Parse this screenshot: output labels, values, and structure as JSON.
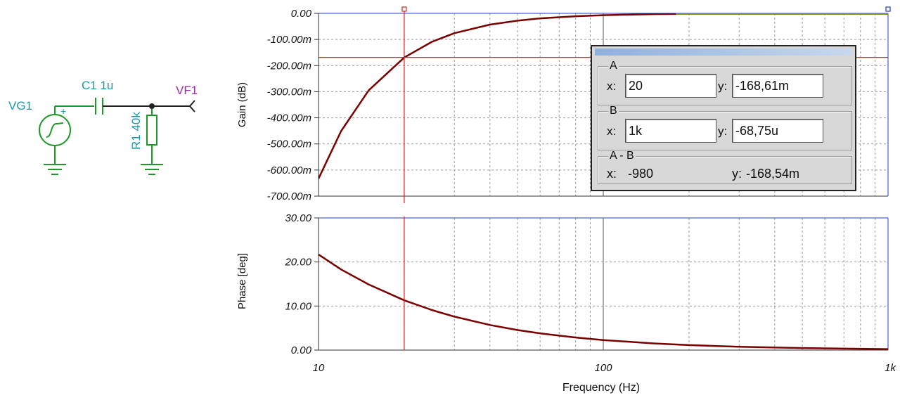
{
  "schematic": {
    "source_label": "VG1",
    "capacitor_label": "C1 1u",
    "resistor_label": "R1 40k",
    "output_label": "VF1",
    "plus_sign": "+"
  },
  "gain_plot": {
    "ylabel": "Gain (dB)",
    "y_ticks": [
      "0.00",
      "-100.00m",
      "-200.00m",
      "-300.00m",
      "-400.00m",
      "-500.00m",
      "-600.00m",
      "-700.00m"
    ]
  },
  "phase_plot": {
    "ylabel": "Phase [deg]",
    "y_ticks": [
      "30.00",
      "20.00",
      "10.00",
      "0.00"
    ]
  },
  "x_axis": {
    "label": "Frequency (Hz)",
    "ticks": [
      "10",
      "100",
      "1k"
    ]
  },
  "cursor_panel": {
    "a": {
      "title": "A",
      "x_prefix": "x:",
      "x_value": "20",
      "y_prefix": "y:",
      "y_value": "-168,61m"
    },
    "b": {
      "title": "B",
      "x_prefix": "x:",
      "x_value": "1k",
      "y_prefix": "y:",
      "y_value": "-68,75u"
    },
    "diff": {
      "title": "A - B",
      "x_prefix": "x:",
      "x_value": "-980",
      "y_prefix": "y:",
      "y_value": "-168,54m"
    }
  },
  "chart_data": [
    {
      "type": "line",
      "xscale": "log",
      "xlim": [
        10,
        1000
      ],
      "ylim": [
        -0.7,
        0
      ],
      "xlabel": "Frequency (Hz)",
      "ylabel": "Gain (dB)",
      "grid": true,
      "series": [
        {
          "x": [
            10,
            12,
            15,
            20,
            25,
            30,
            40,
            50,
            60,
            80,
            100,
            150,
            200,
            300,
            500,
            700,
            1000
          ],
          "y": [
            -0.633,
            -0.451,
            -0.295,
            -0.169,
            -0.109,
            -0.076,
            -0.043,
            -0.028,
            -0.019,
            -0.011,
            -0.007,
            -0.003,
            -0.0017,
            -0.0008,
            -0.0003,
            -0.00014,
            -7e-05
          ]
        }
      ],
      "cursors": [
        {
          "x": 20,
          "y": -0.16861
        },
        {
          "x": 1000,
          "y": -6.875e-05
        }
      ]
    },
    {
      "type": "line",
      "xscale": "log",
      "xlim": [
        10,
        1000
      ],
      "ylim": [
        0,
        30
      ],
      "xlabel": "Frequency (Hz)",
      "ylabel": "Phase [deg]",
      "grid": true,
      "series": [
        {
          "x": [
            10,
            12,
            15,
            20,
            25,
            30,
            40,
            50,
            60,
            80,
            100,
            150,
            200,
            300,
            500,
            700,
            1000
          ],
          "y": [
            21.7,
            18.3,
            14.9,
            11.3,
            9.1,
            7.6,
            5.7,
            4.55,
            3.8,
            2.85,
            2.28,
            1.52,
            1.14,
            0.76,
            0.46,
            0.33,
            0.23
          ]
        }
      ],
      "cursors": [
        {
          "x": 20
        }
      ]
    }
  ],
  "colors": {
    "curve": "#7a0000",
    "cursor": "#e02020",
    "schematic": "#1f9a2a",
    "label_cyan": "#1a9aa8",
    "label_purple": "#9a2aa8",
    "frame_blue": "#2040d0"
  }
}
